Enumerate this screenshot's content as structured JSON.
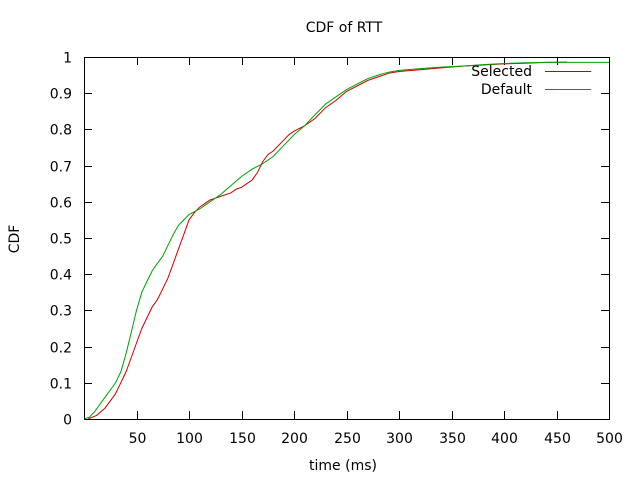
{
  "chart_data": {
    "type": "line",
    "title": "CDF of RTT",
    "xlabel": "time (ms)",
    "ylabel": "CDF",
    "xlim": [
      0,
      500
    ],
    "ylim": [
      0,
      1
    ],
    "x_ticks": [
      "50",
      "100",
      "150",
      "200",
      "250",
      "300",
      "350",
      "400",
      "450",
      "500"
    ],
    "y_ticks": [
      "0",
      "0.1",
      "0.2",
      "0.3",
      "0.4",
      "0.5",
      "0.6",
      "0.7",
      "0.8",
      "0.9",
      "1"
    ],
    "grid": false,
    "legend_position": "top-right",
    "series": [
      {
        "name": "Selected",
        "color": "#cc0000",
        "points": [
          [
            4,
            0
          ],
          [
            8,
            0.005
          ],
          [
            12,
            0.01
          ],
          [
            16,
            0.02
          ],
          [
            20,
            0.03
          ],
          [
            25,
            0.05
          ],
          [
            30,
            0.07
          ],
          [
            35,
            0.1
          ],
          [
            40,
            0.13
          ],
          [
            45,
            0.17
          ],
          [
            50,
            0.21
          ],
          [
            55,
            0.25
          ],
          [
            60,
            0.28
          ],
          [
            65,
            0.31
          ],
          [
            70,
            0.33
          ],
          [
            75,
            0.36
          ],
          [
            80,
            0.39
          ],
          [
            85,
            0.43
          ],
          [
            90,
            0.47
          ],
          [
            95,
            0.51
          ],
          [
            100,
            0.55
          ],
          [
            105,
            0.57
          ],
          [
            110,
            0.585
          ],
          [
            115,
            0.595
          ],
          [
            120,
            0.605
          ],
          [
            125,
            0.61
          ],
          [
            130,
            0.615
          ],
          [
            135,
            0.62
          ],
          [
            140,
            0.625
          ],
          [
            145,
            0.635
          ],
          [
            150,
            0.64
          ],
          [
            155,
            0.65
          ],
          [
            160,
            0.66
          ],
          [
            165,
            0.68
          ],
          [
            170,
            0.71
          ],
          [
            175,
            0.73
          ],
          [
            180,
            0.74
          ],
          [
            185,
            0.755
          ],
          [
            190,
            0.77
          ],
          [
            195,
            0.785
          ],
          [
            200,
            0.795
          ],
          [
            210,
            0.81
          ],
          [
            220,
            0.83
          ],
          [
            230,
            0.86
          ],
          [
            240,
            0.88
          ],
          [
            250,
            0.905
          ],
          [
            260,
            0.92
          ],
          [
            270,
            0.935
          ],
          [
            280,
            0.945
          ],
          [
            290,
            0.955
          ],
          [
            300,
            0.96
          ],
          [
            320,
            0.965
          ],
          [
            340,
            0.97
          ],
          [
            360,
            0.975
          ],
          [
            380,
            0.978
          ],
          [
            400,
            0.981
          ],
          [
            420,
            0.983
          ],
          [
            440,
            0.985
          ],
          [
            460,
            0.986
          ]
        ]
      },
      {
        "name": "Default",
        "color": "#00a000",
        "points": [
          [
            0,
            0
          ],
          [
            5,
            0.005
          ],
          [
            10,
            0.02
          ],
          [
            15,
            0.04
          ],
          [
            20,
            0.06
          ],
          [
            25,
            0.08
          ],
          [
            30,
            0.1
          ],
          [
            35,
            0.13
          ],
          [
            40,
            0.18
          ],
          [
            45,
            0.24
          ],
          [
            50,
            0.3
          ],
          [
            55,
            0.35
          ],
          [
            60,
            0.38
          ],
          [
            65,
            0.41
          ],
          [
            70,
            0.43
          ],
          [
            75,
            0.45
          ],
          [
            80,
            0.48
          ],
          [
            85,
            0.51
          ],
          [
            90,
            0.535
          ],
          [
            95,
            0.55
          ],
          [
            100,
            0.565
          ],
          [
            110,
            0.58
          ],
          [
            120,
            0.6
          ],
          [
            130,
            0.62
          ],
          [
            140,
            0.645
          ],
          [
            150,
            0.67
          ],
          [
            160,
            0.69
          ],
          [
            170,
            0.705
          ],
          [
            180,
            0.725
          ],
          [
            190,
            0.755
          ],
          [
            200,
            0.785
          ],
          [
            210,
            0.81
          ],
          [
            220,
            0.84
          ],
          [
            230,
            0.87
          ],
          [
            240,
            0.89
          ],
          [
            250,
            0.91
          ],
          [
            260,
            0.925
          ],
          [
            270,
            0.94
          ],
          [
            280,
            0.95
          ],
          [
            290,
            0.958
          ],
          [
            300,
            0.963
          ],
          [
            320,
            0.968
          ],
          [
            340,
            0.972
          ],
          [
            360,
            0.975
          ],
          [
            380,
            0.979
          ],
          [
            400,
            0.982
          ],
          [
            420,
            0.984
          ],
          [
            440,
            0.985
          ],
          [
            460,
            0.985
          ],
          [
            480,
            0.985
          ],
          [
            500,
            0.985
          ]
        ]
      }
    ]
  }
}
